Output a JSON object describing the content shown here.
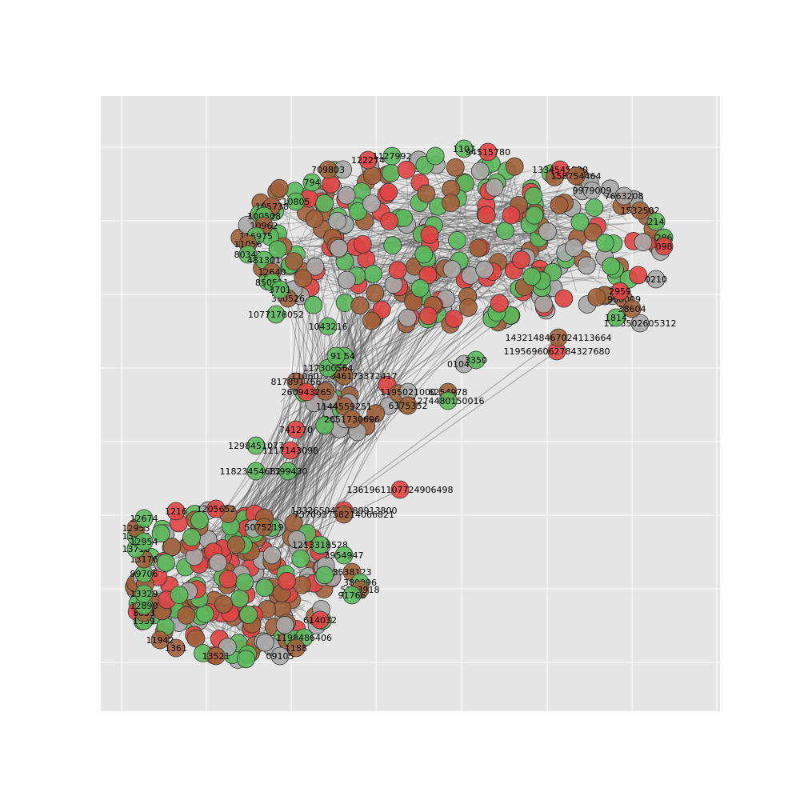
{
  "colors": {
    "plot_background": "#e5e5e5",
    "grid": "#ffffff",
    "edge": "#555555",
    "node_green": "#5cb85c",
    "node_red": "#e04444",
    "node_brown": "#a0603a",
    "node_gray": "#a8a8a8",
    "node_orange": "#e67e22",
    "node_outline": "#333333"
  },
  "graph": {
    "upper_cluster_fill_colors": [
      "node_green",
      "node_red",
      "node_brown",
      "node_gray"
    ],
    "lower_cluster_fill_colors": [
      "node_green",
      "node_brown",
      "node_red",
      "node_gray",
      "node_orange"
    ],
    "labeled_nodes": [
      {
        "id": "n1",
        "label": "1195696062784327680",
        "color": "node_red"
      },
      {
        "id": "n2",
        "label": "1432148467024113664",
        "color": "node_brown"
      },
      {
        "id": "n3",
        "label": "1361961107724906498",
        "color": "node_red"
      },
      {
        "id": "n4",
        "label": "1332650417089913800",
        "color": "node_red"
      },
      {
        "id": "n5",
        "label": "737093758214066821",
        "color": "node_brown"
      },
      {
        "id": "n6",
        "label": "1077178052",
        "color": "node_green"
      },
      {
        "id": "n7",
        "label": "817891766",
        "color": "node_brown"
      },
      {
        "id": "n8",
        "label": "1106077846173372417",
        "color": "node_brown"
      },
      {
        "id": "n9",
        "label": "117300564",
        "color": "node_green"
      },
      {
        "id": "n10",
        "label": "260943265",
        "color": "node_red"
      },
      {
        "id": "n11",
        "label": "1144559251",
        "color": "node_brown"
      },
      {
        "id": "n12",
        "label": "2651730696",
        "color": "node_brown"
      },
      {
        "id": "n13",
        "label": "741270",
        "color": "node_red"
      },
      {
        "id": "n14",
        "label": "1298451077",
        "color": "node_green"
      },
      {
        "id": "n15",
        "label": "1117143098",
        "color": "node_red"
      },
      {
        "id": "n16",
        "label": "1182345468279",
        "color": "node_green"
      },
      {
        "id": "n17",
        "label": "1399430",
        "color": "node_green"
      },
      {
        "id": "n18",
        "label": "1195021000",
        "color": "node_gray"
      },
      {
        "id": "n19",
        "label": "6254978",
        "color": "node_brown"
      },
      {
        "id": "n20",
        "label": "1274480150016",
        "color": "node_green"
      },
      {
        "id": "n21",
        "label": "6375352",
        "color": "node_brown"
      },
      {
        "id": "n22",
        "label": "1143502605312",
        "color": "node_gray"
      },
      {
        "id": "n23",
        "label": "1043216",
        "color": "node_green"
      },
      {
        "id": "n24",
        "label": "709803",
        "color": "node_brown"
      },
      {
        "id": "n25",
        "label": "122274",
        "color": "node_red"
      },
      {
        "id": "n26",
        "label": "1127992",
        "color": "node_green"
      },
      {
        "id": "n27",
        "label": "1107",
        "color": "node_green"
      },
      {
        "id": "n28",
        "label": "94515780",
        "color": "node_red"
      },
      {
        "id": "n29",
        "label": "1334545920",
        "color": "node_red"
      },
      {
        "id": "n30",
        "label": "158754464",
        "color": "node_brown"
      },
      {
        "id": "n31",
        "label": "9979009",
        "color": "node_gray"
      },
      {
        "id": "n32",
        "label": "10805",
        "color": "node_green"
      },
      {
        "id": "n33",
        "label": "105738",
        "color": "node_brown"
      },
      {
        "id": "n34",
        "label": "100508",
        "color": "node_green"
      },
      {
        "id": "n35",
        "label": "10962",
        "color": "node_brown"
      },
      {
        "id": "n36",
        "label": "116975",
        "color": "node_green"
      },
      {
        "id": "n37",
        "label": "11056",
        "color": "node_brown"
      },
      {
        "id": "n38",
        "label": "80342",
        "color": "node_green"
      },
      {
        "id": "n39",
        "label": "481301",
        "color": "node_green"
      },
      {
        "id": "n40",
        "label": "12640",
        "color": "node_brown"
      },
      {
        "id": "n41",
        "label": "850511",
        "color": "node_green"
      },
      {
        "id": "n42",
        "label": "360526",
        "color": "node_brown"
      },
      {
        "id": "n43",
        "label": "3701",
        "color": "node_green"
      },
      {
        "id": "n44",
        "label": "794",
        "color": "node_green"
      },
      {
        "id": "n45",
        "label": "9154",
        "color": "node_green"
      },
      {
        "id": "n46",
        "label": "91",
        "color": "node_green"
      },
      {
        "id": "n47",
        "label": "7663208",
        "color": "node_gray"
      },
      {
        "id": "n48",
        "label": "1532502",
        "color": "node_brown"
      },
      {
        "id": "n49",
        "label": "214",
        "color": "node_green"
      },
      {
        "id": "n50",
        "label": "286",
        "color": "node_green"
      },
      {
        "id": "n51",
        "label": "098",
        "color": "node_red"
      },
      {
        "id": "n52",
        "label": "0210",
        "color": "node_gray"
      },
      {
        "id": "n53",
        "label": "966009",
        "color": "node_brown"
      },
      {
        "id": "n54",
        "label": "1814",
        "color": "node_green"
      },
      {
        "id": "n55",
        "label": "38604",
        "color": "node_brown"
      },
      {
        "id": "n56",
        "label": "2959",
        "color": "node_red"
      },
      {
        "id": "n57",
        "label": "010498",
        "color": "node_gray"
      },
      {
        "id": "n58",
        "label": "3350",
        "color": "node_green"
      },
      {
        "id": "n59",
        "label": "1205652",
        "color": "node_red"
      },
      {
        "id": "n60",
        "label": "5075219",
        "color": "node_brown"
      },
      {
        "id": "n61",
        "label": "1213318528",
        "color": "node_green"
      },
      {
        "id": "n62",
        "label": "3954947",
        "color": "node_green"
      },
      {
        "id": "n63",
        "label": "3538123",
        "color": "node_brown"
      },
      {
        "id": "n64",
        "label": "380096",
        "color": "node_green"
      },
      {
        "id": "n65",
        "label": "5133918",
        "color": "node_brown"
      },
      {
        "id": "n66",
        "label": "91766",
        "color": "node_green"
      },
      {
        "id": "n67",
        "label": "614032",
        "color": "node_red"
      },
      {
        "id": "n68",
        "label": "1198486406",
        "color": "node_green"
      },
      {
        "id": "n69",
        "label": "1188",
        "color": "node_brown"
      },
      {
        "id": "n70",
        "label": "09105",
        "color": "node_gray"
      },
      {
        "id": "n71",
        "label": "13521",
        "color": "node_brown"
      },
      {
        "id": "n72",
        "label": "1361",
        "color": "node_brown"
      },
      {
        "id": "n73",
        "label": "11942",
        "color": "node_brown"
      },
      {
        "id": "n74",
        "label": "1339",
        "color": "node_green"
      },
      {
        "id": "n75",
        "label": "8853",
        "color": "node_brown"
      },
      {
        "id": "n76",
        "label": "12890",
        "color": "node_green"
      },
      {
        "id": "n77",
        "label": "13329",
        "color": "node_green"
      },
      {
        "id": "n78",
        "label": "99706",
        "color": "node_green"
      },
      {
        "id": "n79",
        "label": "13176",
        "color": "node_brown"
      },
      {
        "id": "n80",
        "label": "13718",
        "color": "node_green"
      },
      {
        "id": "n81",
        "label": "13445",
        "color": "node_green"
      },
      {
        "id": "n82",
        "label": "12953",
        "color": "node_brown"
      },
      {
        "id": "n83",
        "label": "12674",
        "color": "node_green"
      },
      {
        "id": "n84",
        "label": "1216",
        "color": "node_red"
      },
      {
        "id": "n85",
        "label": "12954",
        "color": "node_green"
      }
    ]
  }
}
